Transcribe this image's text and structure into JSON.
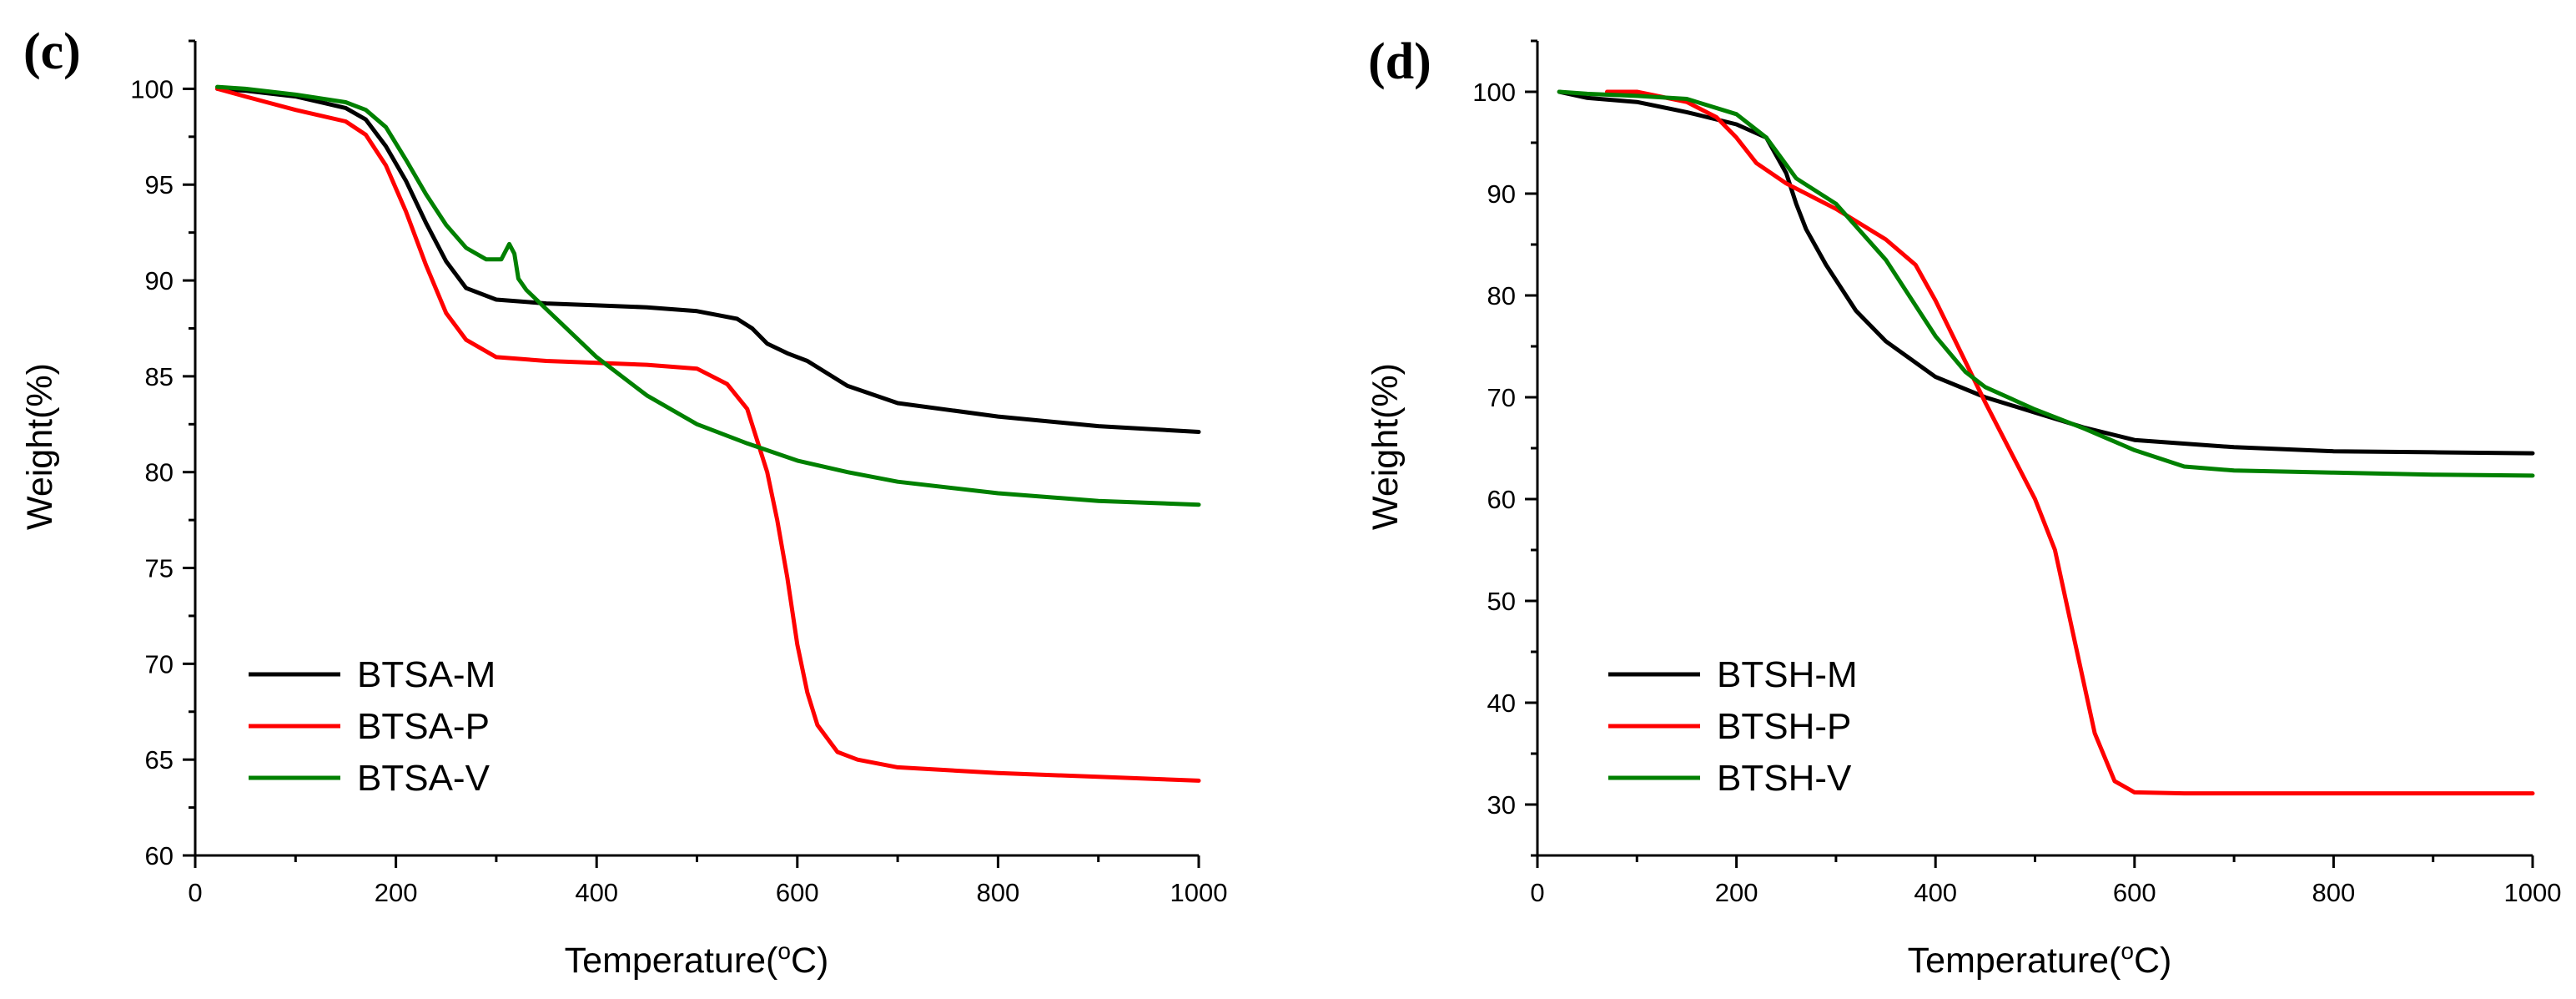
{
  "chart_data": [
    {
      "type": "line",
      "panel_label": "(c)",
      "xlabel": "Temperature(",
      "xlabel_unit_sup": "o",
      "xlabel_unit": "C)",
      "ylabel": "Weight(%)",
      "xlim": [
        0,
        1000
      ],
      "ylim": [
        60,
        102.5
      ],
      "x_ticks": [
        0,
        200,
        400,
        600,
        800,
        1000
      ],
      "y_ticks": [
        60,
        65,
        70,
        75,
        80,
        85,
        90,
        95,
        100
      ],
      "x_minor_step": 100,
      "y_minor_step": 2.5,
      "grid": false,
      "legend_position": "bottom-left",
      "series": [
        {
          "name": "BTSA-M",
          "color": "#000000",
          "x": [
            22,
            50,
            100,
            150,
            170,
            190,
            210,
            230,
            250,
            270,
            300,
            350,
            400,
            450,
            500,
            540,
            555,
            570,
            590,
            610,
            650,
            700,
            800,
            900,
            1000
          ],
          "y": [
            100,
            99.9,
            99.6,
            99.0,
            98.4,
            97.0,
            95.2,
            93.0,
            91.0,
            89.6,
            89.0,
            88.8,
            88.7,
            88.6,
            88.4,
            88.0,
            87.5,
            86.7,
            86.2,
            85.8,
            84.5,
            83.6,
            82.9,
            82.4,
            82.1
          ]
        },
        {
          "name": "BTSA-P",
          "color": "#ff0000",
          "x": [
            22,
            50,
            100,
            150,
            170,
            190,
            210,
            230,
            250,
            270,
            300,
            350,
            400,
            450,
            500,
            530,
            550,
            570,
            580,
            590,
            600,
            610,
            620,
            640,
            660,
            700,
            800,
            900,
            1000
          ],
          "y": [
            100,
            99.6,
            98.9,
            98.3,
            97.6,
            96.0,
            93.6,
            90.8,
            88.3,
            86.9,
            86.0,
            85.8,
            85.7,
            85.6,
            85.4,
            84.6,
            83.3,
            80.0,
            77.5,
            74.5,
            71.0,
            68.5,
            66.8,
            65.4,
            65.0,
            64.6,
            64.3,
            64.1,
            63.9
          ]
        },
        {
          "name": "BTSA-V",
          "color": "#008000",
          "x": [
            22,
            50,
            100,
            150,
            170,
            190,
            210,
            230,
            250,
            270,
            290,
            305,
            313,
            318,
            322,
            330,
            350,
            400,
            450,
            500,
            550,
            600,
            650,
            700,
            800,
            900,
            1000
          ],
          "y": [
            100.1,
            100,
            99.7,
            99.3,
            98.9,
            98.0,
            96.3,
            94.5,
            92.9,
            91.7,
            91.1,
            91.1,
            91.9,
            91.4,
            90.1,
            89.5,
            88.5,
            86.0,
            84.0,
            82.5,
            81.5,
            80.6,
            80.0,
            79.5,
            78.9,
            78.5,
            78.3
          ]
        }
      ]
    },
    {
      "type": "line",
      "panel_label": "(d)",
      "xlabel": "Temperature(",
      "xlabel_unit_sup": "o",
      "xlabel_unit": "C)",
      "ylabel": "Weight(%)",
      "xlim": [
        0,
        1000
      ],
      "ylim": [
        25,
        105
      ],
      "x_ticks": [
        0,
        200,
        400,
        600,
        800,
        1000
      ],
      "y_ticks": [
        30,
        40,
        50,
        60,
        70,
        80,
        90,
        100
      ],
      "x_minor_step": 100,
      "y_minor_step": 5,
      "grid": false,
      "legend_position": "bottom-left",
      "series": [
        {
          "name": "BTSH-M",
          "color": "#000000",
          "x": [
            22,
            50,
            100,
            150,
            200,
            230,
            250,
            260,
            270,
            290,
            320,
            350,
            400,
            450,
            500,
            550,
            600,
            700,
            800,
            900,
            1000
          ],
          "y": [
            100,
            99.4,
            99.0,
            98.0,
            96.8,
            95.5,
            92.0,
            89.0,
            86.5,
            83.0,
            78.5,
            75.5,
            72.0,
            70.0,
            68.5,
            67.0,
            65.8,
            65.1,
            64.7,
            64.6,
            64.5
          ]
        },
        {
          "name": "BTSH-P",
          "color": "#ff0000",
          "x": [
            70,
            100,
            150,
            180,
            200,
            220,
            250,
            280,
            300,
            350,
            380,
            400,
            420,
            450,
            500,
            520,
            540,
            560,
            580,
            600,
            650,
            700,
            800,
            900,
            1000
          ],
          "y": [
            100,
            100,
            99.0,
            97.5,
            95.5,
            93.0,
            91.0,
            89.5,
            88.5,
            85.5,
            83.0,
            79.5,
            75.5,
            69.5,
            60.0,
            55.0,
            46.0,
            37.0,
            32.3,
            31.2,
            31.1,
            31.1,
            31.1,
            31.1,
            31.1
          ]
        },
        {
          "name": "BTSH-V",
          "color": "#008000",
          "x": [
            22,
            50,
            100,
            150,
            200,
            230,
            260,
            300,
            350,
            400,
            430,
            450,
            500,
            550,
            600,
            650,
            700,
            800,
            900,
            1000
          ],
          "y": [
            100,
            99.8,
            99.6,
            99.3,
            97.8,
            95.5,
            91.5,
            89.0,
            83.5,
            76.0,
            72.5,
            71.0,
            68.8,
            66.9,
            64.8,
            63.2,
            62.8,
            62.6,
            62.4,
            62.3
          ]
        }
      ]
    }
  ]
}
